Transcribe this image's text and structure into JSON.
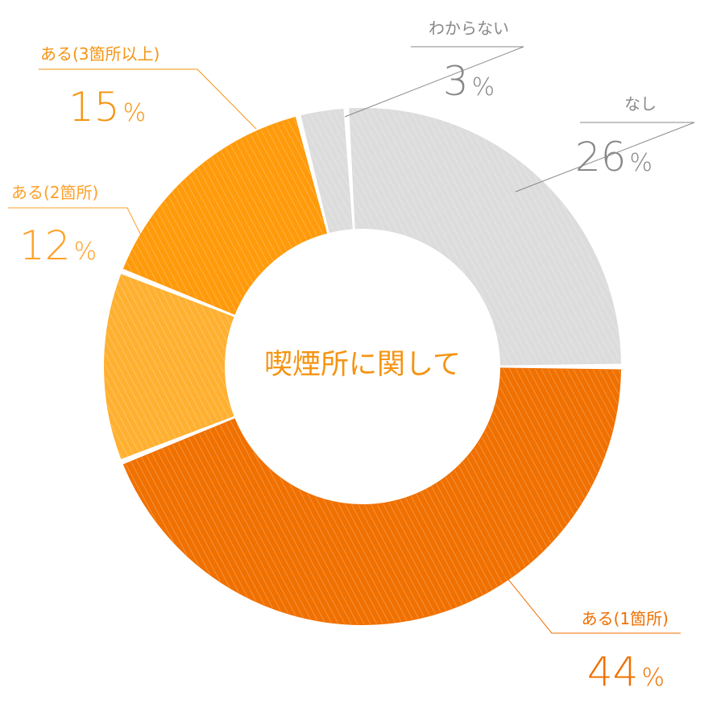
{
  "center_label": "喫煙所に関して",
  "percent_suffix": "%",
  "chart_data": {
    "type": "pie",
    "variant": "donut",
    "title": "",
    "start": "3 o'clock",
    "direction": "clockwise",
    "slices": [
      {
        "label": "ある(1箇所)",
        "value": 44,
        "color": "#f07000",
        "label_color": "#f07000"
      },
      {
        "label": "ある(2箇所)",
        "value": 12,
        "color": "#ffb030",
        "label_color": "#ffa028"
      },
      {
        "label": "ある(3箇所以上)",
        "value": 15,
        "color": "#ff9a0a",
        "label_color": "#f59412"
      },
      {
        "label": "わからない",
        "value": 3,
        "color": "#dcdcdc",
        "label_color": "#888888"
      },
      {
        "label": "なし",
        "value": 26,
        "color": "#dcdcdc",
        "label_color": "#888888"
      }
    ]
  }
}
